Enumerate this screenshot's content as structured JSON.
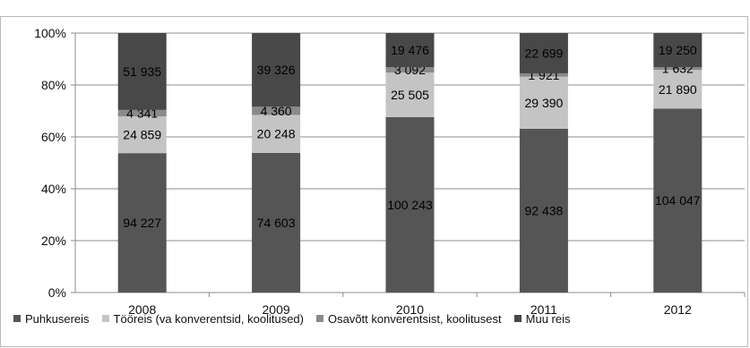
{
  "chart_data": {
    "type": "bar",
    "stacked": "percent",
    "title": "",
    "xlabel": "",
    "ylabel": "",
    "ylim": [
      0,
      100
    ],
    "yticks": [
      "0%",
      "20%",
      "40%",
      "60%",
      "80%",
      "100%"
    ],
    "grid": true,
    "legend_position": "bottom",
    "categories": [
      "2008",
      "2009",
      "2010",
      "2011",
      "2012"
    ],
    "series": [
      {
        "name": "Puhkusereis",
        "color": "#555555",
        "values": [
          94227,
          74603,
          100243,
          92438,
          104047
        ],
        "labels": [
          "94 227",
          "74 603",
          "100 243",
          "92 438",
          "104 047"
        ]
      },
      {
        "name": "Tööreis (va konverentsid, koolitused)",
        "color": "#c4c4c4",
        "values": [
          24859,
          20248,
          25505,
          29390,
          21890
        ],
        "labels": [
          "24 859",
          "20 248",
          "25 505",
          "29 390",
          "21 890"
        ]
      },
      {
        "name": "Osavõtt konverentsist, koolitusest",
        "color": "#8a8a8a",
        "values": [
          4341,
          4360,
          3092,
          1921,
          1632
        ],
        "labels": [
          "4 341",
          "4 360",
          "3 092",
          "1 921",
          "1 632"
        ]
      },
      {
        "name": "Muu reis",
        "color": "#484848",
        "values": [
          51935,
          39326,
          19476,
          22699,
          19250
        ],
        "labels": [
          "51 935",
          "39 326",
          "19 476",
          "22 699",
          "19 250"
        ]
      }
    ]
  }
}
